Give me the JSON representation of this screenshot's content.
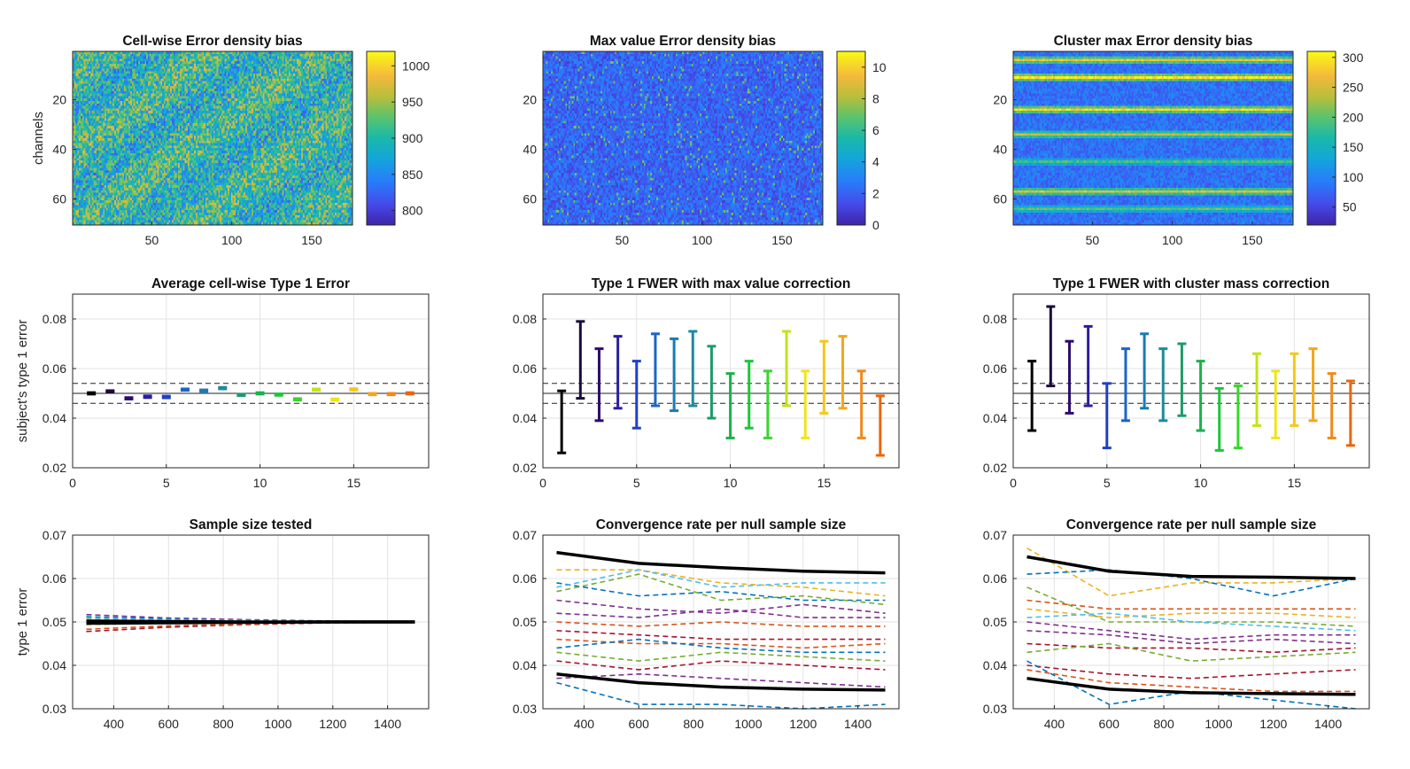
{
  "chart_data": [
    {
      "type": "heatmap",
      "title": "Cell-wise Error density bias",
      "ylabel": "channels",
      "xlabel": "",
      "x_range": [
        1,
        175
      ],
      "y_range": [
        1,
        70
      ],
      "x_ticks": [
        50,
        100,
        150
      ],
      "y_ticks": [
        20,
        40,
        60
      ],
      "y_reversed": true,
      "colorbar": {
        "range": [
          780,
          1020
        ],
        "ticks": [
          800,
          850,
          900,
          950,
          1000
        ]
      },
      "colormap": "parula",
      "pattern": "noisy"
    },
    {
      "type": "heatmap",
      "title": "Max value Error density bias",
      "ylabel": "",
      "xlabel": "",
      "x_range": [
        1,
        175
      ],
      "y_range": [
        1,
        70
      ],
      "x_ticks": [
        50,
        100,
        150
      ],
      "y_ticks": [
        20,
        40,
        60
      ],
      "y_reversed": true,
      "colorbar": {
        "range": [
          0,
          11
        ],
        "ticks": [
          0,
          2,
          4,
          6,
          8,
          10
        ]
      },
      "colormap": "parula",
      "pattern": "sparse"
    },
    {
      "type": "heatmap",
      "title": "Cluster max Error density bias",
      "ylabel": "",
      "xlabel": "",
      "x_range": [
        1,
        175
      ],
      "y_range": [
        1,
        70
      ],
      "x_ticks": [
        50,
        100,
        150
      ],
      "y_ticks": [
        20,
        40,
        60
      ],
      "y_reversed": true,
      "colorbar": {
        "range": [
          20,
          310
        ],
        "ticks": [
          50,
          100,
          150,
          200,
          250,
          300
        ]
      },
      "colormap": "parula",
      "pattern": "banded"
    },
    {
      "type": "errorbar",
      "title": "Average cell-wise Type 1 Error",
      "ylabel": "subject's type 1 error",
      "xlabel": "",
      "xlim": [
        0,
        19
      ],
      "ylim": [
        0.02,
        0.09
      ],
      "x_ticks": [
        0,
        5,
        10,
        15
      ],
      "y_ticks": [
        0.02,
        0.04,
        0.06,
        0.08
      ],
      "y_tick_labels": [
        "0.02",
        "0.04",
        "0.06",
        "0.08"
      ],
      "grid": true,
      "reference_lines": {
        "solid": 0.05,
        "dashed": [
          0.046,
          0.054
        ]
      },
      "x": [
        1,
        2,
        3,
        4,
        5,
        6,
        7,
        8,
        9,
        10,
        11,
        12,
        13,
        14,
        15,
        16,
        17,
        18
      ],
      "low": [
        0.0497,
        0.0505,
        0.0477,
        0.0483,
        0.0482,
        0.0512,
        0.0508,
        0.0518,
        0.0491,
        0.0497,
        0.0492,
        0.0473,
        0.0512,
        0.0472,
        0.0513,
        0.0494,
        0.0494,
        0.0497
      ],
      "high": [
        0.0503,
        0.0511,
        0.0483,
        0.049,
        0.0489,
        0.0518,
        0.0514,
        0.0524,
        0.0497,
        0.0503,
        0.0498,
        0.0479,
        0.0518,
        0.0478,
        0.0519,
        0.05,
        0.05,
        0.0503
      ],
      "colors": [
        "#000000",
        "#1c0a3a",
        "#2c0d6e",
        "#2a1fa0",
        "#2040c4",
        "#1a66c8",
        "#1a7bb5",
        "#1e8a9c",
        "#1d9b6a",
        "#19b34a",
        "#1cc63a",
        "#38d62e",
        "#c4e21c",
        "#f0e418",
        "#f5c71a",
        "#f4a61c",
        "#f08a1a",
        "#e8670e"
      ]
    },
    {
      "type": "errorbar",
      "title": "Type 1 FWER with max value correction",
      "ylabel": "",
      "xlabel": "",
      "xlim": [
        0,
        19
      ],
      "ylim": [
        0.02,
        0.09
      ],
      "x_ticks": [
        0,
        5,
        10,
        15
      ],
      "y_ticks": [
        0.02,
        0.04,
        0.06,
        0.08
      ],
      "y_tick_labels": [
        "0.02",
        "0.04",
        "0.06",
        "0.08"
      ],
      "grid": true,
      "reference_lines": {
        "solid": 0.05,
        "dashed": [
          0.046,
          0.054
        ]
      },
      "x": [
        1,
        2,
        3,
        4,
        5,
        6,
        7,
        8,
        9,
        10,
        11,
        12,
        13,
        14,
        15,
        16,
        17,
        18
      ],
      "low": [
        0.026,
        0.048,
        0.039,
        0.044,
        0.036,
        0.045,
        0.043,
        0.045,
        0.04,
        0.032,
        0.036,
        0.032,
        0.045,
        0.032,
        0.042,
        0.044,
        0.032,
        0.025
      ],
      "high": [
        0.051,
        0.079,
        0.068,
        0.073,
        0.063,
        0.074,
        0.072,
        0.075,
        0.069,
        0.058,
        0.063,
        0.059,
        0.075,
        0.059,
        0.071,
        0.073,
        0.059,
        0.049
      ],
      "colors": [
        "#000000",
        "#1c0a3a",
        "#2c0d6e",
        "#2a1fa0",
        "#2040c4",
        "#1a66c8",
        "#1a7bb5",
        "#1e8a9c",
        "#1d9b6a",
        "#19b34a",
        "#1cc63a",
        "#38d62e",
        "#c4e21c",
        "#f0e418",
        "#f5c71a",
        "#f4a61c",
        "#f08a1a",
        "#e8670e"
      ]
    },
    {
      "type": "errorbar",
      "title": "Type 1 FWER with cluster mass correction",
      "ylabel": "",
      "xlabel": "",
      "xlim": [
        0,
        19
      ],
      "ylim": [
        0.02,
        0.09
      ],
      "x_ticks": [
        0,
        5,
        10,
        15
      ],
      "y_ticks": [
        0.02,
        0.04,
        0.06,
        0.08
      ],
      "y_tick_labels": [
        "0.02",
        "0.04",
        "0.06",
        "0.08"
      ],
      "grid": true,
      "reference_lines": {
        "solid": 0.05,
        "dashed": [
          0.046,
          0.054
        ]
      },
      "x": [
        1,
        2,
        3,
        4,
        5,
        6,
        7,
        8,
        9,
        10,
        11,
        12,
        13,
        14,
        15,
        16,
        17,
        18
      ],
      "low": [
        0.035,
        0.053,
        0.042,
        0.045,
        0.028,
        0.039,
        0.044,
        0.039,
        0.041,
        0.035,
        0.027,
        0.028,
        0.037,
        0.032,
        0.037,
        0.039,
        0.032,
        0.029
      ],
      "high": [
        0.063,
        0.085,
        0.071,
        0.077,
        0.054,
        0.068,
        0.074,
        0.068,
        0.07,
        0.063,
        0.052,
        0.053,
        0.066,
        0.059,
        0.066,
        0.068,
        0.058,
        0.055
      ],
      "colors": [
        "#000000",
        "#1c0a3a",
        "#2c0d6e",
        "#2a1fa0",
        "#2040c4",
        "#1a66c8",
        "#1a7bb5",
        "#1e8a9c",
        "#1d9b6a",
        "#19b34a",
        "#1cc63a",
        "#38d62e",
        "#c4e21c",
        "#f0e418",
        "#f5c71a",
        "#f4a61c",
        "#f08a1a",
        "#e8670e"
      ]
    },
    {
      "type": "line",
      "title": "Sample size tested",
      "ylabel": "type 1 error",
      "xlabel": "",
      "xlim": [
        250,
        1550
      ],
      "ylim": [
        0.03,
        0.07
      ],
      "x_ticks": [
        400,
        600,
        800,
        1000,
        1200,
        1400
      ],
      "y_ticks": [
        0.03,
        0.04,
        0.05,
        0.06,
        0.07
      ],
      "y_tick_labels": [
        "0.03",
        "0.04",
        "0.05",
        "0.06",
        "0.07"
      ],
      "grid": true,
      "x": [
        300,
        600,
        900,
        1200,
        1500
      ],
      "series": [
        {
          "values": [
            0.0497,
            0.0498,
            0.0499,
            0.05,
            0.05
          ],
          "color": "#000000",
          "style": "solid"
        },
        {
          "values": [
            0.0502,
            0.0501,
            0.05,
            0.05,
            0.05
          ],
          "color": "#000000",
          "style": "solid"
        },
        {
          "values": [
            0.0517,
            0.0509,
            0.0505,
            0.0502,
            0.05
          ],
          "color": "#7e2f8e",
          "style": "dashed"
        },
        {
          "values": [
            0.0512,
            0.0507,
            0.0503,
            0.0501,
            0.05
          ],
          "color": "#0072bd",
          "style": "dashed"
        },
        {
          "values": [
            0.0478,
            0.0488,
            0.0494,
            0.0498,
            0.0499
          ],
          "color": "#a2142f",
          "style": "dashed"
        },
        {
          "values": [
            0.0483,
            0.0491,
            0.0495,
            0.0499,
            0.05
          ],
          "color": "#d95319",
          "style": "dashed"
        },
        {
          "values": [
            0.0506,
            0.0504,
            0.0502,
            0.0501,
            0.05
          ],
          "color": "#edb120",
          "style": "dashed"
        },
        {
          "values": [
            0.0494,
            0.0497,
            0.0498,
            0.0499,
            0.05
          ],
          "color": "#77ac30",
          "style": "dashed"
        },
        {
          "values": [
            0.0509,
            0.0505,
            0.0503,
            0.0501,
            0.05
          ],
          "color": "#4dbeee",
          "style": "dashed"
        }
      ]
    },
    {
      "type": "line",
      "title": "Convergence rate per null sample size",
      "ylabel": "",
      "xlabel": "",
      "xlim": [
        250,
        1550
      ],
      "ylim": [
        0.03,
        0.07
      ],
      "x_ticks": [
        400,
        600,
        800,
        1000,
        1200,
        1400
      ],
      "y_ticks": [
        0.03,
        0.04,
        0.05,
        0.06,
        0.07
      ],
      "y_tick_labels": [
        "0.03",
        "0.04",
        "0.05",
        "0.06",
        "0.07"
      ],
      "grid": true,
      "x": [
        300,
        600,
        900,
        1200,
        1500
      ],
      "series": [
        {
          "values": [
            0.066,
            0.0635,
            0.0625,
            0.0617,
            0.0613
          ],
          "color": "#000000",
          "style": "solid"
        },
        {
          "values": [
            0.038,
            0.036,
            0.035,
            0.0345,
            0.0343
          ],
          "color": "#000000",
          "style": "solid"
        },
        {
          "values": [
            0.062,
            0.062,
            0.059,
            0.058,
            0.056
          ],
          "color": "#edb120",
          "style": "dashed"
        },
        {
          "values": [
            0.059,
            0.056,
            0.057,
            0.055,
            0.055
          ],
          "color": "#0072bd",
          "style": "dashed"
        },
        {
          "values": [
            0.058,
            0.062,
            0.058,
            0.059,
            0.059
          ],
          "color": "#4dbeee",
          "style": "dashed"
        },
        {
          "values": [
            0.057,
            0.061,
            0.055,
            0.056,
            0.054
          ],
          "color": "#77ac30",
          "style": "dashed"
        },
        {
          "values": [
            0.055,
            0.053,
            0.052,
            0.054,
            0.052
          ],
          "color": "#7e2f8e",
          "style": "dashed"
        },
        {
          "values": [
            0.052,
            0.051,
            0.053,
            0.051,
            0.051
          ],
          "color": "#7e2f8e",
          "style": "dashed"
        },
        {
          "values": [
            0.05,
            0.049,
            0.05,
            0.049,
            0.049
          ],
          "color": "#d95319",
          "style": "dashed"
        },
        {
          "values": [
            0.048,
            0.047,
            0.046,
            0.046,
            0.046
          ],
          "color": "#a2142f",
          "style": "dashed"
        },
        {
          "values": [
            0.046,
            0.045,
            0.045,
            0.044,
            0.045
          ],
          "color": "#d95319",
          "style": "dashed"
        },
        {
          "values": [
            0.044,
            0.046,
            0.044,
            0.043,
            0.043
          ],
          "color": "#0072bd",
          "style": "dashed"
        },
        {
          "values": [
            0.043,
            0.041,
            0.043,
            0.042,
            0.041
          ],
          "color": "#77ac30",
          "style": "dashed"
        },
        {
          "values": [
            0.041,
            0.039,
            0.041,
            0.04,
            0.039
          ],
          "color": "#a2142f",
          "style": "dashed"
        },
        {
          "values": [
            0.037,
            0.038,
            0.037,
            0.036,
            0.035
          ],
          "color": "#7e2f8e",
          "style": "dashed"
        },
        {
          "values": [
            0.036,
            0.031,
            0.031,
            0.03,
            0.031
          ],
          "color": "#0072bd",
          "style": "dashed"
        }
      ]
    },
    {
      "type": "line",
      "title": "Convergence rate per null sample size",
      "ylabel": "",
      "xlabel": "",
      "xlim": [
        250,
        1550
      ],
      "ylim": [
        0.03,
        0.07
      ],
      "x_ticks": [
        400,
        600,
        800,
        1000,
        1200,
        1400
      ],
      "y_ticks": [
        0.03,
        0.04,
        0.05,
        0.06,
        0.07
      ],
      "y_tick_labels": [
        "0.03",
        "0.04",
        "0.05",
        "0.06",
        "0.07"
      ],
      "grid": true,
      "x": [
        300,
        600,
        900,
        1200,
        1500
      ],
      "series": [
        {
          "values": [
            0.065,
            0.0617,
            0.0605,
            0.0603,
            0.06
          ],
          "color": "#000000",
          "style": "solid"
        },
        {
          "values": [
            0.037,
            0.0345,
            0.0337,
            0.0335,
            0.0333
          ],
          "color": "#000000",
          "style": "solid"
        },
        {
          "values": [
            0.067,
            0.056,
            0.059,
            0.059,
            0.06
          ],
          "color": "#edb120",
          "style": "dashed"
        },
        {
          "values": [
            0.061,
            0.062,
            0.06,
            0.056,
            0.06
          ],
          "color": "#0072bd",
          "style": "dashed"
        },
        {
          "values": [
            0.058,
            0.05,
            0.05,
            0.05,
            0.049
          ],
          "color": "#77ac30",
          "style": "dashed"
        },
        {
          "values": [
            0.055,
            0.053,
            0.053,
            0.053,
            0.053
          ],
          "color": "#d95319",
          "style": "dashed"
        },
        {
          "values": [
            0.053,
            0.051,
            0.052,
            0.052,
            0.051
          ],
          "color": "#edb120",
          "style": "dashed"
        },
        {
          "values": [
            0.051,
            0.052,
            0.05,
            0.049,
            0.048
          ],
          "color": "#4dbeee",
          "style": "dashed"
        },
        {
          "values": [
            0.05,
            0.048,
            0.046,
            0.047,
            0.047
          ],
          "color": "#7e2f8e",
          "style": "dashed"
        },
        {
          "values": [
            0.048,
            0.047,
            0.045,
            0.046,
            0.045
          ],
          "color": "#7e2f8e",
          "style": "dashed"
        },
        {
          "values": [
            0.045,
            0.044,
            0.044,
            0.043,
            0.044
          ],
          "color": "#a2142f",
          "style": "dashed"
        },
        {
          "values": [
            0.043,
            0.045,
            0.041,
            0.042,
            0.043
          ],
          "color": "#77ac30",
          "style": "dashed"
        },
        {
          "values": [
            0.04,
            0.038,
            0.037,
            0.038,
            0.039
          ],
          "color": "#a2142f",
          "style": "dashed"
        },
        {
          "values": [
            0.039,
            0.036,
            0.035,
            0.034,
            0.034
          ],
          "color": "#d95319",
          "style": "dashed"
        },
        {
          "values": [
            0.041,
            0.031,
            0.034,
            0.032,
            0.03
          ],
          "color": "#0072bd",
          "style": "dashed"
        }
      ]
    }
  ]
}
